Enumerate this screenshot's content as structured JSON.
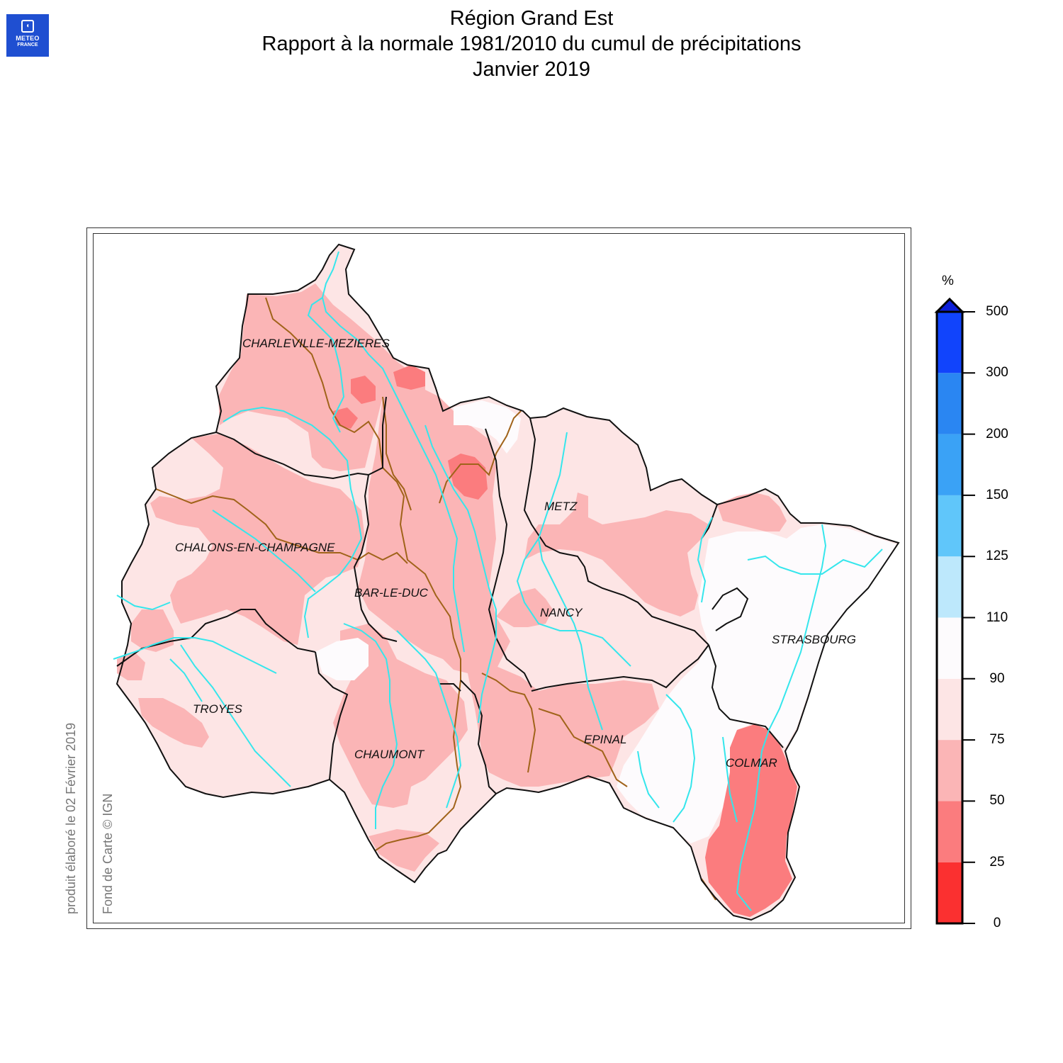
{
  "logo": {
    "line1": "METEO",
    "line2": "FRANCE"
  },
  "title": {
    "line1": "Région Grand Est",
    "line2": "Rapport à la normale 1981/2010 du cumul de précipitations",
    "line3": "Janvier 2019"
  },
  "cities": {
    "charleville": "CHARLEVILLE-MEZIERES",
    "metz": "METZ",
    "chalons": "CHALONS-EN-CHAMPAGNE",
    "barleduc": "BAR-LE-DUC",
    "nancy": "NANCY",
    "strasbourg": "STRASBOURG",
    "troyes": "TROYES",
    "epinal": "EPINAL",
    "chaumont": "CHAUMONT",
    "colmar": "COLMAR"
  },
  "side_text": {
    "produced": "produit élaboré le 02 Février 2019",
    "basemap": "Fond de Carte © IGN"
  },
  "legend": {
    "unit": "%",
    "ticks": [
      "500",
      "300",
      "200",
      "150",
      "125",
      "110",
      "90",
      "75",
      "50",
      "25",
      "0"
    ],
    "classes": [
      {
        "from": 0,
        "to": 25,
        "color": "#fb3030"
      },
      {
        "from": 25,
        "to": 50,
        "color": "#fb7c7e"
      },
      {
        "from": 50,
        "to": 75,
        "color": "#fbb5b6"
      },
      {
        "from": 75,
        "to": 90,
        "color": "#fde5e5"
      },
      {
        "from": 90,
        "to": 110,
        "color": "#fdfbfd"
      },
      {
        "from": 110,
        "to": 125,
        "color": "#bde8fc"
      },
      {
        "from": 125,
        "to": 150,
        "color": "#60c6fa"
      },
      {
        "from": 150,
        "to": 200,
        "color": "#3aa2f6"
      },
      {
        "from": 200,
        "to": 300,
        "color": "#2a86f2"
      },
      {
        "from": 300,
        "to": 500,
        "color": "#1144fc"
      }
    ],
    "overflow_color": "#0d1fd8"
  },
  "colors": {
    "border_dept": "#111111",
    "border_basin": "#a0631a",
    "river": "#35e6ec"
  }
}
